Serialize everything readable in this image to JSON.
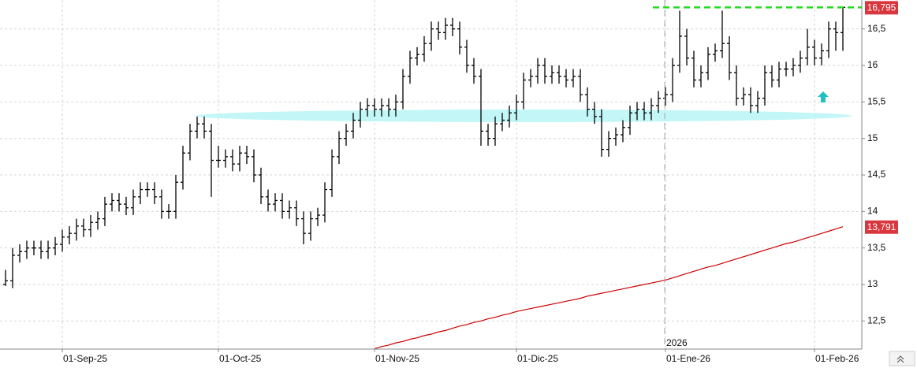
{
  "chart_data": {
    "type": "ohlc",
    "color": "#000000",
    "categories": [
      null,
      null,
      null,
      null,
      null,
      null,
      null,
      null,
      "01-Sep-25",
      null,
      null,
      null,
      null,
      null,
      null,
      null,
      null,
      null,
      null,
      null,
      null,
      null,
      null,
      null,
      null,
      null,
      null,
      null,
      null,
      null,
      "01-Oct-25",
      null,
      null,
      null,
      null,
      null,
      null,
      null,
      null,
      null,
      null,
      null,
      null,
      null,
      null,
      null,
      null,
      null,
      null,
      null,
      null,
      null,
      "01-Nov-25",
      null,
      null,
      null,
      null,
      null,
      null,
      null,
      null,
      null,
      null,
      null,
      null,
      null,
      null,
      null,
      null,
      null,
      null,
      null,
      "01-Dic-25",
      null,
      null,
      null,
      null,
      null,
      null,
      null,
      null,
      null,
      null,
      null,
      null,
      null,
      null,
      null,
      null,
      null,
      null,
      null,
      null,
      "01-Ene-26",
      null,
      null,
      null,
      null,
      null,
      null,
      null,
      null,
      null,
      null,
      null,
      null,
      null,
      null,
      null,
      null,
      null,
      null,
      null,
      null,
      "01-Feb-26",
      null,
      null,
      null,
      null
    ],
    "open": [
      13.0,
      13.05,
      13.4,
      13.45,
      13.5,
      13.5,
      13.45,
      13.5,
      13.55,
      13.65,
      13.7,
      13.8,
      13.75,
      13.85,
      13.9,
      14.1,
      14.15,
      14.1,
      14.05,
      14.2,
      14.3,
      14.3,
      14.2,
      14.0,
      14.0,
      14.4,
      14.8,
      15.1,
      15.2,
      15.1,
      14.7,
      14.7,
      14.75,
      14.65,
      14.8,
      14.75,
      14.5,
      14.2,
      14.1,
      14.15,
      14.0,
      14.05,
      13.9,
      13.7,
      13.9,
      13.95,
      14.3,
      14.75,
      15.0,
      15.1,
      15.25,
      15.4,
      15.45,
      15.4,
      15.45,
      15.4,
      15.5,
      15.85,
      16.1,
      16.15,
      16.3,
      16.5,
      16.45,
      16.55,
      16.5,
      16.25,
      16.0,
      15.85,
      15.1,
      15.0,
      15.2,
      15.25,
      15.35,
      15.5,
      15.8,
      15.85,
      16.0,
      15.85,
      15.9,
      15.85,
      15.8,
      15.85,
      15.6,
      15.4,
      15.3,
      14.85,
      15.0,
      15.05,
      15.15,
      15.35,
      15.4,
      15.35,
      15.45,
      15.55,
      15.6,
      16.0,
      16.4,
      16.1,
      15.8,
      15.9,
      16.15,
      16.2,
      16.3,
      15.9,
      15.55,
      15.6,
      15.45,
      15.55,
      15.9,
      15.8,
      15.95,
      15.95,
      16.0,
      16.1,
      16.25,
      16.1,
      16.2,
      16.5,
      16.45
    ],
    "high": [
      13.2,
      13.5,
      13.55,
      13.6,
      13.6,
      13.6,
      13.6,
      13.65,
      13.75,
      13.8,
      13.9,
      13.9,
      13.95,
      14.0,
      14.2,
      14.25,
      14.25,
      14.2,
      14.3,
      14.4,
      14.4,
      14.4,
      14.3,
      14.1,
      14.5,
      14.9,
      15.2,
      15.3,
      15.3,
      15.2,
      14.9,
      14.85,
      14.85,
      14.9,
      14.9,
      14.85,
      14.6,
      14.3,
      14.25,
      14.25,
      14.15,
      14.15,
      14.0,
      14.0,
      14.05,
      14.4,
      14.85,
      15.1,
      15.2,
      15.35,
      15.5,
      15.55,
      15.55,
      15.55,
      15.55,
      15.6,
      15.95,
      16.2,
      16.25,
      16.4,
      16.6,
      16.6,
      16.65,
      16.65,
      16.6,
      16.35,
      16.1,
      15.95,
      15.2,
      15.3,
      15.35,
      15.45,
      15.6,
      15.9,
      15.95,
      16.1,
      16.1,
      16.0,
      16.0,
      15.95,
      15.95,
      15.95,
      15.7,
      15.5,
      15.4,
      15.1,
      15.15,
      15.25,
      15.45,
      15.5,
      15.5,
      15.55,
      15.65,
      15.7,
      16.1,
      16.75,
      16.5,
      16.2,
      16.0,
      16.25,
      16.3,
      16.75,
      16.4,
      16.0,
      15.7,
      15.7,
      15.65,
      16.0,
      16.0,
      16.05,
      16.05,
      16.1,
      16.2,
      16.5,
      16.35,
      16.3,
      16.6,
      16.6,
      16.8
    ],
    "low": [
      12.98,
      12.95,
      13.3,
      13.35,
      13.4,
      13.35,
      13.35,
      13.4,
      13.45,
      13.55,
      13.6,
      13.65,
      13.65,
      13.75,
      13.8,
      14.0,
      14.0,
      13.95,
      13.95,
      14.1,
      14.2,
      14.1,
      13.9,
      13.9,
      13.9,
      14.3,
      14.7,
      15.0,
      15.0,
      14.2,
      14.6,
      14.6,
      14.55,
      14.55,
      14.65,
      14.4,
      14.1,
      14.0,
      14.0,
      13.9,
      13.9,
      13.8,
      13.55,
      13.6,
      13.8,
      13.85,
      14.2,
      14.65,
      14.9,
      15.0,
      15.15,
      15.3,
      15.3,
      15.3,
      15.3,
      15.3,
      15.4,
      15.75,
      16.0,
      16.05,
      16.2,
      16.35,
      16.35,
      16.4,
      16.15,
      15.9,
      15.75,
      14.9,
      14.9,
      14.9,
      15.1,
      15.15,
      15.25,
      15.4,
      15.7,
      15.75,
      15.75,
      15.75,
      15.75,
      15.7,
      15.7,
      15.5,
      15.3,
      15.2,
      14.75,
      14.75,
      14.9,
      14.95,
      15.05,
      15.25,
      15.25,
      15.25,
      15.35,
      15.45,
      15.5,
      15.9,
      16.0,
      15.7,
      15.7,
      15.8,
      16.05,
      16.1,
      15.8,
      15.45,
      15.45,
      15.35,
      15.35,
      15.45,
      15.7,
      15.7,
      15.85,
      15.85,
      15.9,
      16.0,
      16.0,
      16.0,
      16.1,
      16.2,
      16.2
    ],
    "close": [
      13.05,
      13.4,
      13.45,
      13.5,
      13.5,
      13.45,
      13.5,
      13.55,
      13.65,
      13.7,
      13.8,
      13.75,
      13.85,
      13.9,
      14.1,
      14.15,
      14.1,
      14.05,
      14.2,
      14.3,
      14.3,
      14.2,
      14.0,
      14.0,
      14.4,
      14.8,
      15.1,
      15.2,
      15.1,
      14.7,
      14.7,
      14.75,
      14.65,
      14.8,
      14.75,
      14.5,
      14.2,
      14.1,
      14.15,
      14.0,
      14.05,
      13.9,
      13.7,
      13.9,
      13.95,
      14.3,
      14.75,
      15.0,
      15.1,
      15.25,
      15.4,
      15.45,
      15.4,
      15.45,
      15.4,
      15.5,
      15.85,
      16.1,
      16.15,
      16.3,
      16.5,
      16.45,
      16.55,
      16.5,
      16.25,
      16.0,
      15.85,
      15.1,
      15.0,
      15.2,
      15.25,
      15.35,
      15.5,
      15.8,
      15.85,
      16.0,
      15.85,
      15.9,
      15.85,
      15.8,
      15.85,
      15.6,
      15.4,
      15.3,
      14.85,
      15.0,
      15.05,
      15.15,
      15.35,
      15.4,
      15.35,
      15.45,
      15.55,
      15.6,
      16.0,
      16.4,
      16.1,
      15.8,
      15.9,
      16.15,
      16.2,
      16.3,
      15.9,
      15.55,
      15.6,
      15.45,
      15.55,
      15.9,
      15.8,
      15.95,
      15.95,
      16.0,
      16.1,
      16.25,
      16.1,
      16.2,
      16.5,
      16.45,
      16.795
    ],
    "line": {
      "color": "#cc0000",
      "values": [
        null,
        null,
        null,
        null,
        null,
        null,
        null,
        null,
        null,
        null,
        null,
        null,
        null,
        null,
        null,
        null,
        null,
        null,
        null,
        null,
        null,
        null,
        null,
        null,
        null,
        null,
        null,
        null,
        null,
        null,
        null,
        null,
        null,
        null,
        null,
        null,
        null,
        null,
        null,
        null,
        null,
        null,
        null,
        null,
        null,
        null,
        null,
        null,
        null,
        null,
        null,
        null,
        12.12,
        12.15,
        12.17,
        12.2,
        12.22,
        12.25,
        12.27,
        12.3,
        12.32,
        12.35,
        12.37,
        12.4,
        12.43,
        12.45,
        12.48,
        12.5,
        12.53,
        12.55,
        12.58,
        12.6,
        12.63,
        12.65,
        12.67,
        12.69,
        12.71,
        12.73,
        12.75,
        12.77,
        12.79,
        12.81,
        12.84,
        12.86,
        12.88,
        12.9,
        12.92,
        12.94,
        12.96,
        12.98,
        13.0,
        13.02,
        13.04,
        13.06,
        13.09,
        13.12,
        13.15,
        13.18,
        13.21,
        13.24,
        13.26,
        13.29,
        13.32,
        13.35,
        13.38,
        13.41,
        13.44,
        13.47,
        13.5,
        13.53,
        13.56,
        13.58,
        13.61,
        13.64,
        13.67,
        13.7,
        13.73,
        13.76,
        13.791
      ]
    },
    "price_labels": [
      {
        "value": 16.795,
        "label": "16,795",
        "color": "#d9363e"
      },
      {
        "value": 13.791,
        "label": "13,791",
        "color": "#d9363e"
      }
    ],
    "resistance_color": "#22dd22",
    "year_label": "2026",
    "ylim": [
      12.126,
      16.896
    ],
    "yticks": [
      {
        "value": 16.5,
        "label": "16,5"
      },
      16,
      {
        "value": 15.5,
        "label": "15,5"
      },
      15,
      {
        "value": 14.5,
        "label": "14,5"
      },
      14,
      {
        "value": 13.5,
        "label": "13,5"
      },
      13,
      {
        "value": 12.5,
        "label": "12,5"
      }
    ],
    "grid": true
  }
}
